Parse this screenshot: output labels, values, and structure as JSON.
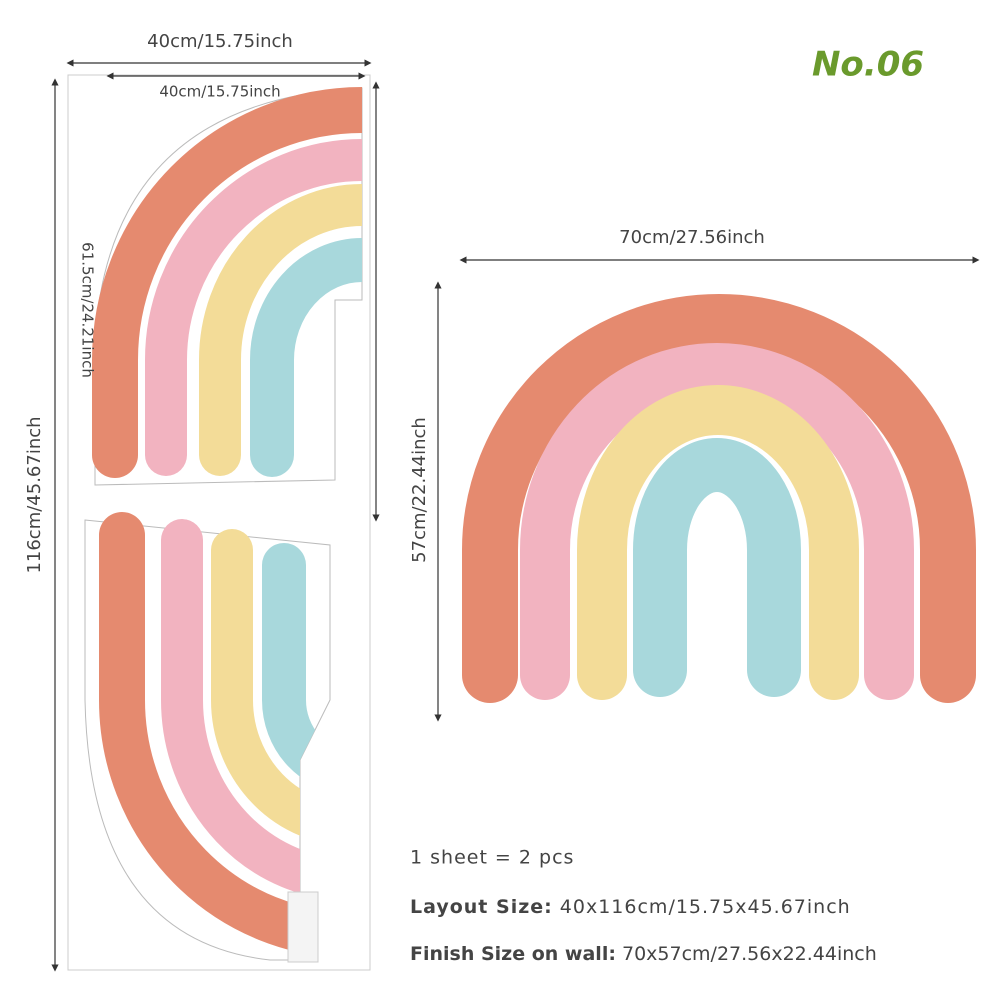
{
  "header": {
    "badge": "No.06"
  },
  "layout": {
    "width_top": "40cm/15.75inch",
    "width_inner": "40cm/15.75inch",
    "height_piece": "61.5cm/24.21inch",
    "height_total": "116cm/45.67inch"
  },
  "finish": {
    "width": "70cm/27.56inch",
    "height": "57cm/22.44inch"
  },
  "specs": {
    "sheet": "1 sheet = 2 pcs",
    "layout_label": "Layout Size:",
    "layout_value": "40x116cm/15.75x45.67inch",
    "finish_label": "Finish Size on wall:",
    "finish_value": "70x57cm/27.56x22.44inch"
  }
}
